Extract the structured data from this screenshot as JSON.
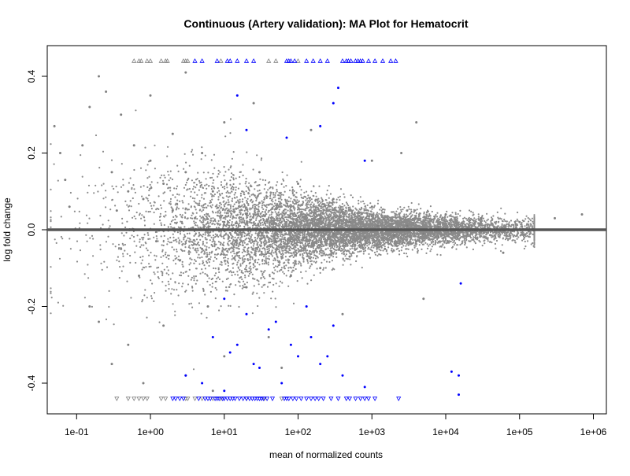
{
  "chart_data": {
    "type": "scatter",
    "title": "Continuous (Artery validation): MA Plot for Hematocrit",
    "xlabel": "mean of normalized counts",
    "ylabel": "log fold change",
    "x_scale": "log10",
    "xlim": [
      0.04,
      1500000
    ],
    "ylim": [
      -0.48,
      0.48
    ],
    "x_ticks": [
      {
        "value": 0.1,
        "label": "1e-01"
      },
      {
        "value": 1,
        "label": "1e+00"
      },
      {
        "value": 10,
        "label": "1e+01"
      },
      {
        "value": 100,
        "label": "1e+02"
      },
      {
        "value": 1000,
        "label": "1e+03"
      },
      {
        "value": 10000,
        "label": "1e+04"
      },
      {
        "value": 100000,
        "label": "1e+05"
      },
      {
        "value": 1000000,
        "label": "1e+06"
      }
    ],
    "y_ticks": [
      {
        "value": -0.4,
        "label": "-0.4"
      },
      {
        "value": -0.2,
        "label": "-0.2"
      },
      {
        "value": 0.0,
        "label": "0.0"
      },
      {
        "value": 0.2,
        "label": "0.2"
      },
      {
        "value": 0.4,
        "label": "0.4"
      }
    ],
    "reference_line": {
      "y": 0,
      "color": "#555555"
    },
    "grid": false,
    "legend": "none",
    "series": [
      {
        "color": "#808080",
        "marker": "dot",
        "points": [
          [
            0.05,
            0.27
          ],
          [
            0.06,
            0.2
          ],
          [
            0.07,
            0.13
          ],
          [
            0.08,
            0.06
          ],
          [
            0.12,
            0.22
          ],
          [
            0.15,
            0.32
          ],
          [
            0.2,
            0.4
          ],
          [
            0.25,
            0.36
          ],
          [
            0.3,
            0.15
          ],
          [
            0.35,
            0.05
          ],
          [
            0.4,
            -0.05
          ],
          [
            0.5,
            0.1
          ],
          [
            0.6,
            0.22
          ],
          [
            0.7,
            -0.12
          ],
          [
            0.8,
            0.08
          ],
          [
            1.0,
            0.18
          ],
          [
            1.2,
            -0.03
          ],
          [
            1.5,
            0.12
          ],
          [
            2.0,
            0.05
          ],
          [
            2.5,
            -0.08
          ],
          [
            3.0,
            0.15
          ],
          [
            4.0,
            0.03
          ],
          [
            5.0,
            -0.05
          ],
          [
            7.0,
            0.1
          ],
          [
            10.0,
            0.02
          ],
          [
            15.0,
            -0.06
          ],
          [
            20.0,
            0.04
          ],
          [
            30.0,
            0.07
          ],
          [
            50.0,
            -0.03
          ],
          [
            80.0,
            0.02
          ],
          [
            120.0,
            -0.02
          ],
          [
            200.0,
            0.03
          ],
          [
            300.0,
            -0.01
          ],
          [
            500.0,
            0.02
          ],
          [
            800.0,
            -0.02
          ],
          [
            1200.0,
            0.01
          ],
          [
            2000.0,
            -0.015
          ],
          [
            3000.0,
            0.01
          ],
          [
            5000.0,
            -0.01
          ],
          [
            8000.0,
            0.008
          ],
          [
            12000.0,
            -0.005
          ],
          [
            20000.0,
            0.005
          ],
          [
            30000.0,
            -0.004
          ],
          [
            50000.0,
            0.003
          ],
          [
            80000.0,
            -0.003
          ],
          [
            150000.0,
            0.002
          ],
          [
            300000.0,
            0.03
          ],
          [
            700000.0,
            0.04
          ],
          [
            0.3,
            -0.35
          ],
          [
            0.5,
            -0.3
          ],
          [
            0.8,
            -0.4
          ],
          [
            1.5,
            -0.25
          ],
          [
            3.0,
            -0.38
          ],
          [
            6.0,
            -0.2
          ],
          [
            10.0,
            -0.33
          ],
          [
            20.0,
            -0.15
          ],
          [
            40.0,
            -0.28
          ],
          [
            80.0,
            -0.12
          ],
          [
            200.0,
            -0.1
          ],
          [
            500.0,
            -0.07
          ],
          [
            1500.0,
            -0.05
          ],
          [
            4000.0,
            -0.03
          ],
          [
            8000.0,
            -0.02
          ],
          [
            20000.0,
            -0.012
          ],
          [
            0.4,
            0.3
          ],
          [
            1.0,
            0.35
          ],
          [
            2.0,
            0.25
          ],
          [
            5.0,
            0.2
          ],
          [
            10.0,
            0.28
          ],
          [
            30.0,
            0.15
          ],
          [
            100.0,
            0.12
          ],
          [
            300.0,
            0.08
          ],
          [
            1000.0,
            0.06
          ],
          [
            3000.0,
            0.05
          ],
          [
            10000.0,
            0.04
          ],
          [
            30000.0,
            0.03
          ],
          [
            60000.0,
            -0.06
          ],
          [
            100000.0,
            0.02
          ],
          [
            0.15,
            -0.2
          ],
          [
            0.2,
            -0.24
          ],
          [
            3.0,
            0.41
          ],
          [
            7.0,
            -0.42
          ],
          [
            25.0,
            0.33
          ],
          [
            60.0,
            -0.36
          ],
          [
            150.0,
            0.26
          ],
          [
            400.0,
            -0.22
          ],
          [
            1000.0,
            0.18
          ],
          [
            2500.0,
            0.2
          ],
          [
            4000.0,
            0.28
          ],
          [
            5000.0,
            -0.18
          ]
        ]
      },
      {
        "color": "#0000ff",
        "marker": "dot",
        "points": [
          [
            15.0,
            0.35
          ],
          [
            20.0,
            0.26
          ],
          [
            70.0,
            0.24
          ],
          [
            200.0,
            0.27
          ],
          [
            300.0,
            0.33
          ],
          [
            350.0,
            0.37
          ],
          [
            800.0,
            0.18
          ],
          [
            10.0,
            -0.18
          ],
          [
            20.0,
            -0.22
          ],
          [
            40.0,
            -0.26
          ],
          [
            80.0,
            -0.3
          ],
          [
            130.0,
            -0.2
          ],
          [
            200.0,
            -0.35
          ],
          [
            300.0,
            -0.25
          ],
          [
            7.0,
            -0.28
          ],
          [
            12.0,
            -0.32
          ],
          [
            30.0,
            -0.36
          ],
          [
            60.0,
            -0.4
          ],
          [
            100.0,
            -0.33
          ],
          [
            400.0,
            -0.38
          ],
          [
            800.0,
            -0.41
          ],
          [
            5.0,
            -0.4
          ],
          [
            3.0,
            -0.38
          ],
          [
            10.0,
            -0.42
          ],
          [
            15.0,
            -0.3
          ],
          [
            25.0,
            -0.35
          ],
          [
            50.0,
            -0.24
          ],
          [
            150.0,
            -0.28
          ],
          [
            250.0,
            -0.33
          ],
          [
            12000.0,
            -0.37
          ],
          [
            15000.0,
            -0.38
          ],
          [
            16000.0,
            -0.14
          ],
          [
            15000.0,
            -0.43
          ]
        ]
      },
      {
        "color": "#808080",
        "marker": "triangle-up",
        "y_value": 0.44,
        "x": [
          0.6,
          0.7,
          0.75,
          0.9,
          1.0,
          1.4,
          1.6,
          1.7,
          2.8,
          3.0,
          3.2,
          9.0,
          40.0,
          50.0,
          100.0
        ]
      },
      {
        "color": "#0000ff",
        "marker": "triangle-up",
        "y_value": 0.44,
        "x": [
          4.0,
          5.0,
          8.0,
          11.0,
          12.0,
          15.0,
          20.0,
          25.0,
          70.0,
          75.0,
          80.0,
          90.0,
          130.0,
          160.0,
          200.0,
          250.0,
          400.0,
          450.0,
          480.0,
          520.0,
          600.0,
          650.0,
          700.0,
          750.0,
          900.0,
          1100.0,
          1400.0,
          1800.0,
          2100.0
        ]
      },
      {
        "color": "#808080",
        "marker": "triangle-down",
        "y_value": -0.44,
        "x": [
          0.35,
          0.5,
          0.6,
          0.7,
          0.8,
          0.9,
          1.4,
          1.6,
          3.0,
          3.2,
          4.0,
          5.0,
          7.0,
          9.0,
          20.0,
          35.0,
          60.0
        ]
      },
      {
        "color": "#0000ff",
        "marker": "triangle-down",
        "y_value": -0.44,
        "x": [
          2.0,
          2.2,
          2.5,
          2.8,
          4.5,
          5.5,
          6.0,
          6.5,
          7.5,
          8.0,
          8.5,
          9.5,
          10.0,
          11.0,
          12.0,
          13.0,
          14.0,
          16.0,
          18.0,
          20.0,
          22.0,
          24.0,
          26.0,
          28.0,
          30.0,
          32.0,
          34.0,
          38.0,
          45.0,
          65.0,
          70.0,
          75.0,
          85.0,
          95.0,
          110.0,
          130.0,
          150.0,
          170.0,
          190.0,
          220.0,
          280.0,
          350.0,
          450.0,
          500.0,
          600.0,
          700.0,
          800.0,
          900.0,
          1100.0,
          2300.0
        ]
      }
    ]
  }
}
